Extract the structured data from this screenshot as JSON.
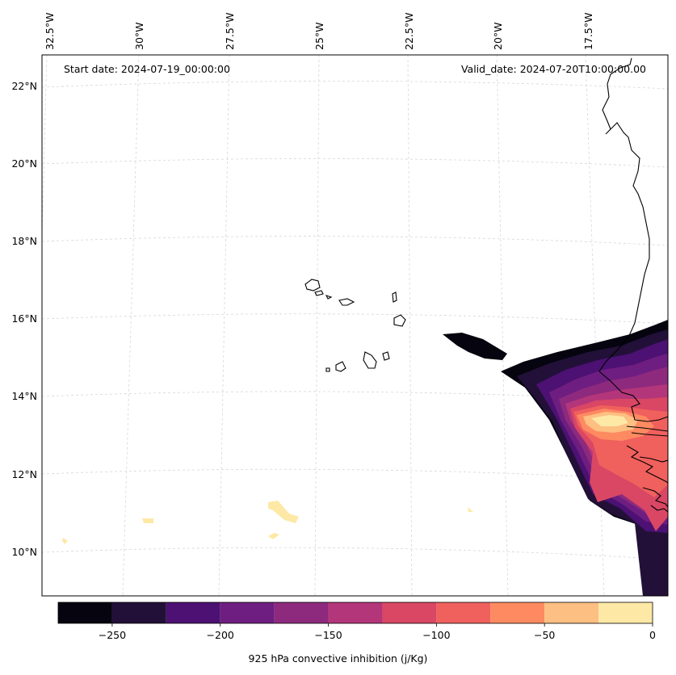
{
  "map": {
    "start_date_text": "Start date: 2024-07-19_00:00:00",
    "valid_date_text": "Valid_date: 2024-07-20T10:00:00.00",
    "longitude_labels": [
      "32.5°W",
      "30°W",
      "27.5°W",
      "25°W",
      "22.5°W",
      "20°W",
      "17.5°W"
    ],
    "latitude_labels": [
      "22°N",
      "20°N",
      "18°N",
      "16°N",
      "14°N",
      "12°N",
      "10°N"
    ],
    "variable": "925 hPa convective inhibition",
    "units": "j/Kg"
  },
  "colorbar": {
    "label": "925 hPa convective inhibition (j/Kg)",
    "tick_labels": [
      "−250",
      "−200",
      "−150",
      "−100",
      "−50",
      "0"
    ],
    "levels": [
      -275,
      -250,
      -225,
      -200,
      -175,
      -150,
      -125,
      -100,
      -75,
      -50,
      -25,
      0
    ],
    "colors": [
      "#05040f",
      "#221038",
      "#4c1173",
      "#6e1e80",
      "#8e2a7e",
      "#b4367a",
      "#d94764",
      "#f0605d",
      "#fe8a62",
      "#fdbf82",
      "#fde8a6"
    ]
  }
}
